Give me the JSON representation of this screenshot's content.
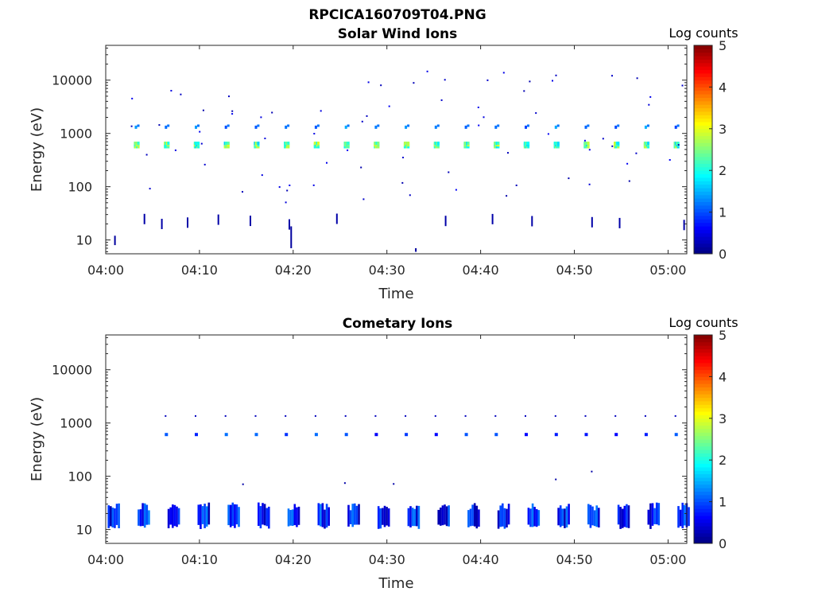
{
  "figure": {
    "title": "RPCICA160709T04.PNG"
  },
  "chart_data": [
    {
      "type": "heatmap",
      "title": "Solar Wind Ions",
      "xlabel": "Time",
      "ylabel": "Energy (eV)",
      "yscale": "log",
      "ylim": [
        5.5,
        45000
      ],
      "xlim": [
        "04:00",
        "05:02"
      ],
      "x_ticks": [
        "04:00",
        "04:10",
        "04:20",
        "04:30",
        "04:40",
        "04:50",
        "05:00"
      ],
      "y_ticks": [
        "10",
        "100",
        "1000",
        "10000"
      ],
      "colorbar": {
        "label": "Log counts",
        "range": [
          0,
          5
        ],
        "ticks": [
          "0",
          "1",
          "2",
          "3",
          "4",
          "5"
        ]
      },
      "grid": false,
      "patterns": [
        {
          "description_of_data": "periodic solar-wind ion beam",
          "energy_eV": 650,
          "log_counts_peak": 3.0,
          "period_min": 3.2
        },
        {
          "description_of_data": "secondary peak",
          "energy_eV": 1400,
          "log_counts_peak": 1.5,
          "period_min": 3.2
        },
        {
          "description_of_data": "low-energy sparse counts",
          "energy_eV": 20,
          "log_counts_peak": 0.2
        }
      ]
    },
    {
      "type": "heatmap",
      "title": "Cometary Ions",
      "xlabel": "Time",
      "ylabel": "Energy (eV)",
      "yscale": "log",
      "ylim": [
        5.5,
        45000
      ],
      "xlim": [
        "04:00",
        "05:02"
      ],
      "x_ticks": [
        "04:00",
        "04:10",
        "04:20",
        "04:30",
        "04:40",
        "04:50",
        "05:00"
      ],
      "y_ticks": [
        "10",
        "100",
        "1000",
        "10000"
      ],
      "colorbar": {
        "label": "Log counts",
        "range": [
          0,
          5
        ],
        "ticks": [
          "0",
          "1",
          "2",
          "3",
          "4",
          "5"
        ]
      },
      "grid": false,
      "patterns": [
        {
          "description_of_data": "low-energy cometary ion bursts",
          "energy_eV": [
            12,
            30
          ],
          "log_counts_peak": 1.5,
          "period_min": 3.2
        },
        {
          "description_of_data": "beam leakage",
          "energy_eV": 650,
          "log_counts_peak": 1.2,
          "period_min": 3.2
        }
      ]
    }
  ]
}
